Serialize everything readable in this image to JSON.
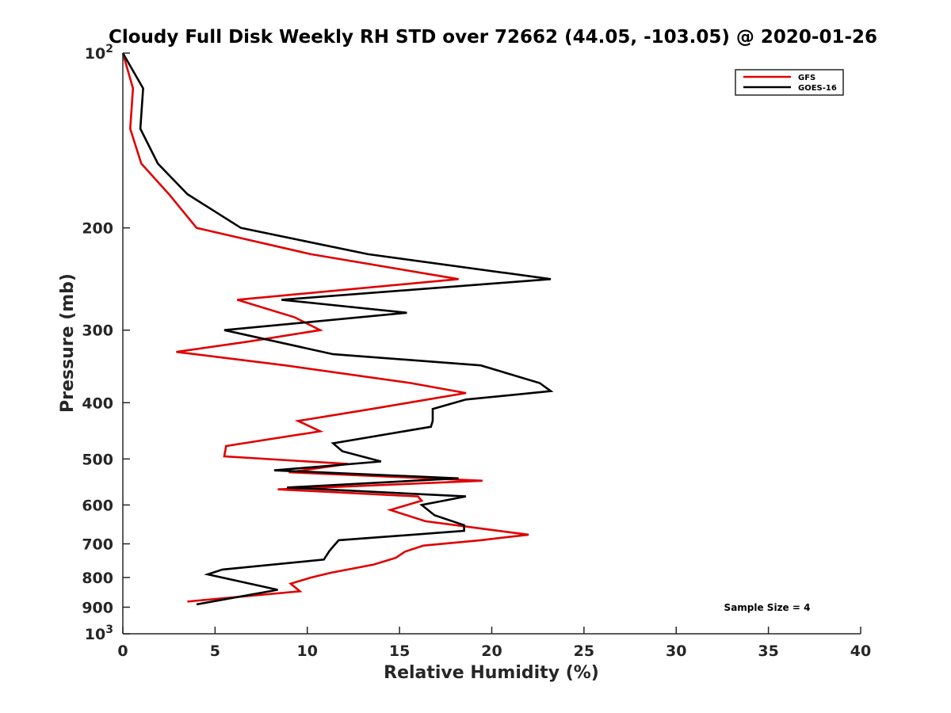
{
  "chart_data": {
    "type": "line",
    "title": "Cloudy Full Disk Weekly RH STD over 72662 (44.05, -103.05) @ 2020-01-26",
    "xlabel": "Relative Humidity (%)",
    "ylabel": "Pressure (mb)",
    "xlim": [
      0,
      40
    ],
    "ylim": [
      100,
      1000
    ],
    "y_scale": "log",
    "y_reversed": true,
    "x_ticks": [
      "0",
      "5",
      "10",
      "15",
      "20",
      "25",
      "30",
      "35",
      "40"
    ],
    "y_ticks": [
      {
        "value": 100,
        "base": "10",
        "exp": "2"
      },
      {
        "value": 200,
        "label": "200"
      },
      {
        "value": 300,
        "label": "300"
      },
      {
        "value": 400,
        "label": "400"
      },
      {
        "value": 500,
        "label": "500"
      },
      {
        "value": 600,
        "label": "600"
      },
      {
        "value": 700,
        "label": "700"
      },
      {
        "value": 800,
        "label": "800"
      },
      {
        "value": 900,
        "label": "900"
      },
      {
        "value": 1000,
        "base": "10",
        "exp": "3"
      }
    ],
    "legend_position": "top-right",
    "grid": false,
    "series": [
      {
        "name": "GFS",
        "color": "#e00000",
        "points": [
          [
            0.0,
            100
          ],
          [
            0.55,
            115
          ],
          [
            0.4,
            135
          ],
          [
            1.0,
            155
          ],
          [
            2.5,
            175
          ],
          [
            4.0,
            200
          ],
          [
            10.2,
            222
          ],
          [
            18.2,
            245
          ],
          [
            6.2,
            266
          ],
          [
            9.3,
            285
          ],
          [
            10.7,
            300
          ],
          [
            6.8,
            314
          ],
          [
            2.9,
            327
          ],
          [
            8.8,
            345
          ],
          [
            15.6,
            370
          ],
          [
            18.6,
            385
          ],
          [
            13.5,
            410
          ],
          [
            9.5,
            430
          ],
          [
            10.7,
            448
          ],
          [
            5.6,
            475
          ],
          [
            5.5,
            495
          ],
          [
            12.2,
            510
          ],
          [
            9.0,
            527
          ],
          [
            19.5,
            545
          ],
          [
            8.4,
            564
          ],
          [
            16.0,
            580
          ],
          [
            16.2,
            590
          ],
          [
            14.5,
            612
          ],
          [
            16.4,
            640
          ],
          [
            19.6,
            660
          ],
          [
            22.0,
            675
          ],
          [
            19.4,
            690
          ],
          [
            16.3,
            705
          ],
          [
            15.3,
            722
          ],
          [
            14.8,
            740
          ],
          [
            13.6,
            760
          ],
          [
            11.3,
            785
          ],
          [
            10.2,
            800
          ],
          [
            9.1,
            820
          ],
          [
            9.6,
            845
          ],
          [
            3.5,
            880
          ]
        ]
      },
      {
        "name": "GOES-16",
        "color": "#000000",
        "points": [
          [
            0.0,
            100
          ],
          [
            1.1,
            115
          ],
          [
            0.95,
            135
          ],
          [
            1.9,
            155
          ],
          [
            3.5,
            175
          ],
          [
            6.4,
            200
          ],
          [
            13.3,
            222
          ],
          [
            23.2,
            245
          ],
          [
            8.6,
            266
          ],
          [
            15.4,
            280
          ],
          [
            5.5,
            300
          ],
          [
            11.4,
            330
          ],
          [
            19.4,
            345
          ],
          [
            22.6,
            370
          ],
          [
            23.2,
            382
          ],
          [
            18.6,
            395
          ],
          [
            16.8,
            410
          ],
          [
            16.8,
            430
          ],
          [
            16.7,
            440
          ],
          [
            11.4,
            470
          ],
          [
            11.9,
            485
          ],
          [
            14.0,
            505
          ],
          [
            8.2,
            523
          ],
          [
            18.2,
            540
          ],
          [
            8.9,
            560
          ],
          [
            18.6,
            580
          ],
          [
            16.2,
            600
          ],
          [
            16.9,
            625
          ],
          [
            18.5,
            650
          ],
          [
            18.5,
            665
          ],
          [
            11.7,
            690
          ],
          [
            11.2,
            720
          ],
          [
            10.9,
            745
          ],
          [
            5.4,
            775
          ],
          [
            4.6,
            790
          ],
          [
            8.4,
            840
          ],
          [
            4.0,
            890
          ]
        ]
      }
    ],
    "annotation": "Sample Size = 4"
  }
}
